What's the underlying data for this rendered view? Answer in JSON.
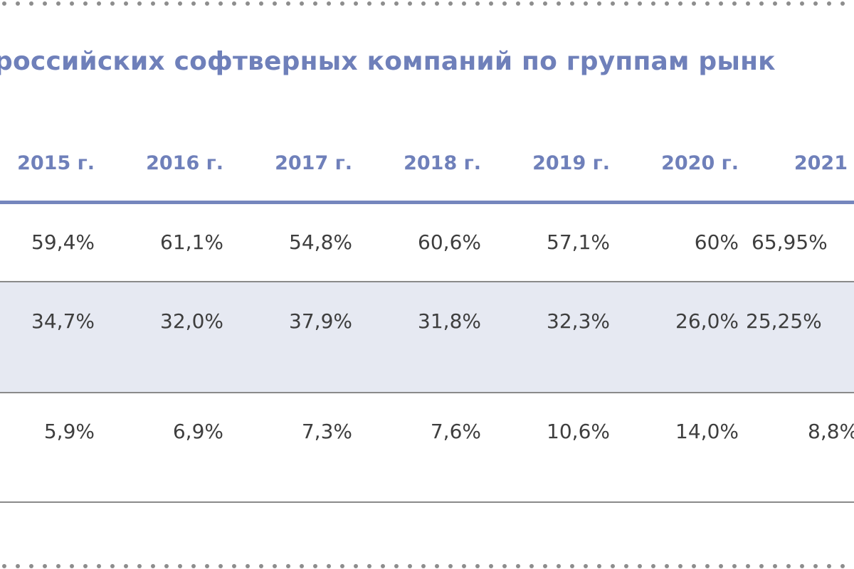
{
  "table": {
    "title": "российских софтверных компаний по группам рынк",
    "years": [
      "2015 г.",
      "2016 г.",
      "2017 г.",
      "2018 г.",
      "2019 г.",
      "2020 г.",
      "2021"
    ],
    "rows": [
      [
        "59,4%",
        "61,1%",
        "54,8%",
        "60,6%",
        "57,1%",
        "60%",
        "65,95%"
      ],
      [
        "34,7%",
        "32,0%",
        "37,9%",
        "31,8%",
        "32,3%",
        "26,0%",
        "25,25%"
      ],
      [
        "5,9%",
        "6,9%",
        "7,3%",
        "7,6%",
        "10,6%",
        "14,0%",
        "8,8%"
      ]
    ]
  },
  "colors": {
    "accent": "#6f80ba",
    "header_rule": "#7586bd",
    "band": "#e6e9f2",
    "text": "#3e3e3e",
    "divider": "#8a8a8a"
  }
}
